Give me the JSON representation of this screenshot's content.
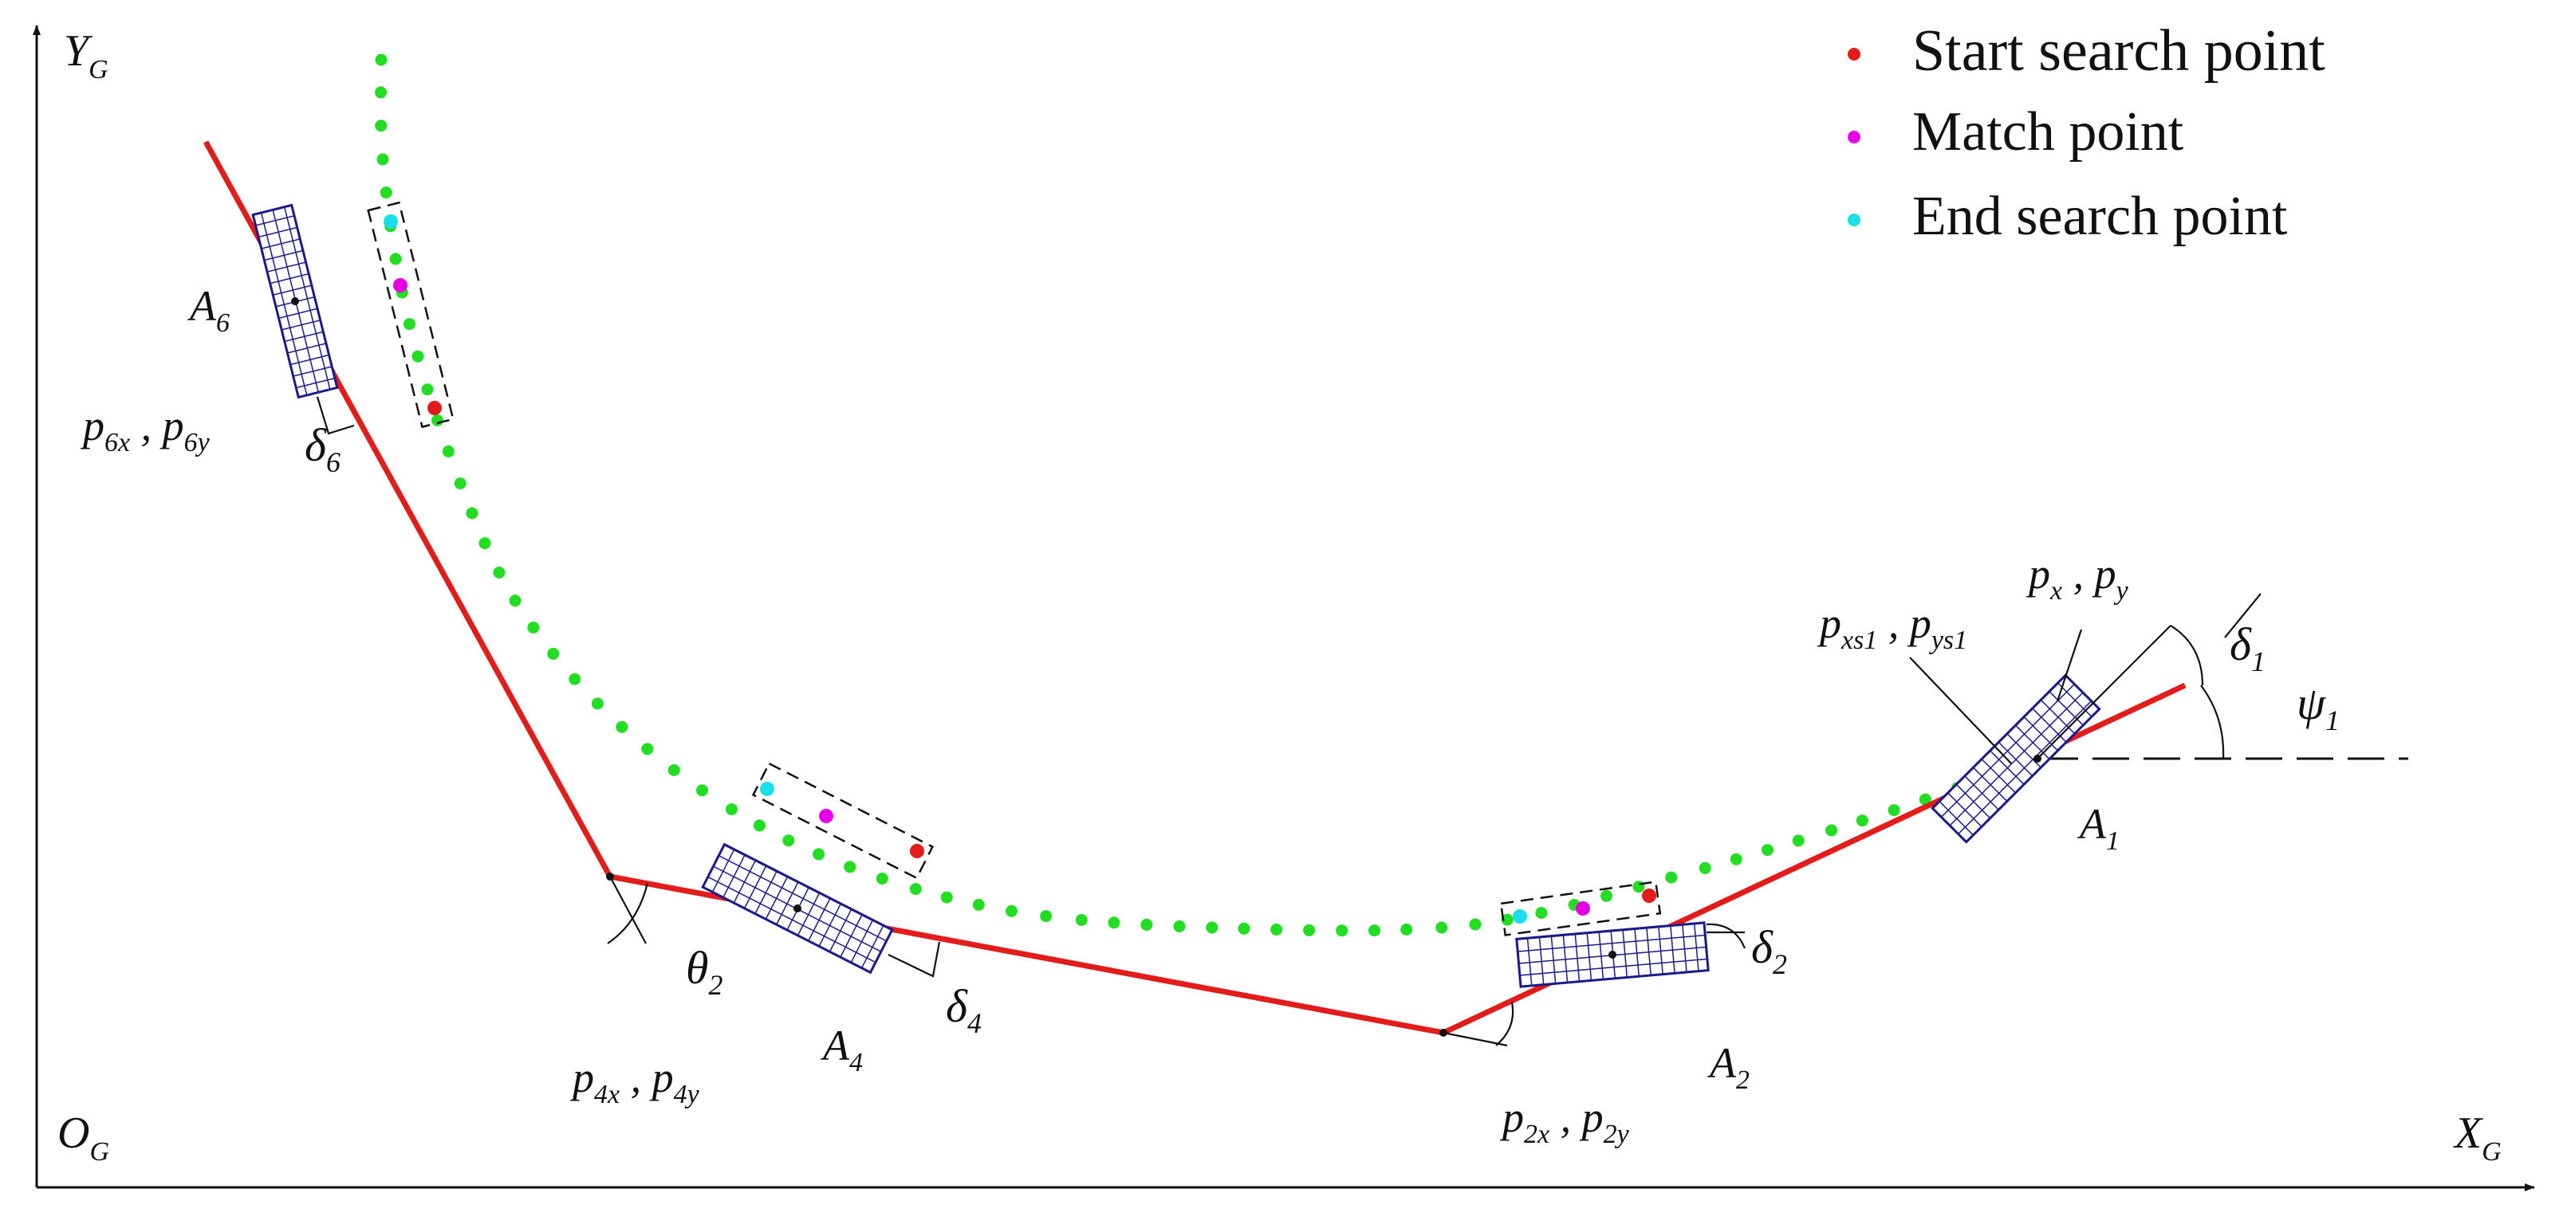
{
  "legend": {
    "start": {
      "label": "Start search point",
      "color": "#e21b1b"
    },
    "match": {
      "label": "Match point",
      "color": "#e600e6"
    },
    "end": {
      "label": "End search point",
      "color": "#19e0e8"
    }
  },
  "axes": {
    "y_main": "Y",
    "y_sub": "G",
    "x_main": "X",
    "x_sub": "G",
    "o_main": "O",
    "o_sub": "G"
  },
  "colors": {
    "trajectory": "#e21b1b",
    "path_dots": "#22dd22",
    "body_fill": "#1a1a8c"
  },
  "labels": {
    "A1": {
      "main": "A",
      "sub": "1"
    },
    "A2": {
      "main": "A",
      "sub": "2"
    },
    "A4": {
      "main": "A",
      "sub": "4"
    },
    "A6": {
      "main": "A",
      "sub": "6"
    },
    "delta1": {
      "main": "δ",
      "sub": "1"
    },
    "delta2": {
      "main": "δ",
      "sub": "2"
    },
    "delta4": {
      "main": "δ",
      "sub": "4"
    },
    "delta6": {
      "main": "δ",
      "sub": "6"
    },
    "theta2": {
      "main": "θ",
      "sub": "2"
    },
    "psi1": {
      "main": "ψ",
      "sub": "1"
    },
    "pxpy": {
      "p1": "p",
      "s1": "x",
      "sep": " , ",
      "p2": "p",
      "s2": "y"
    },
    "pxs1": {
      "p1": "p",
      "s1": "xs1",
      "sep": " , ",
      "p2": "p",
      "s2": "ys1"
    },
    "p2": {
      "p1": "p",
      "s1": "2x",
      "sep": " , ",
      "p2": "p",
      "s2": "2y"
    },
    "p4": {
      "p1": "p",
      "s1": "4x",
      "sep": " , ",
      "p2": "p",
      "s2": "4y"
    },
    "p6": {
      "p1": "p",
      "s1": "6x",
      "sep": " , ",
      "p2": "p",
      "s2": "6y"
    }
  }
}
